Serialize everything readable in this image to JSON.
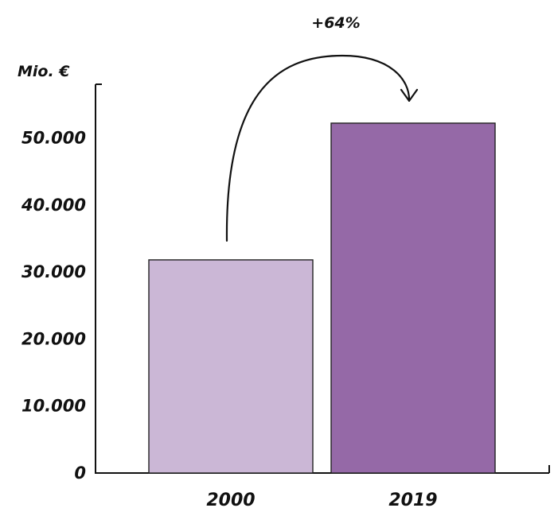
{
  "chart_data": {
    "type": "bar",
    "categories": [
      "2000",
      "2019"
    ],
    "values": [
      31800,
      52200
    ],
    "bar_colors": [
      "#cbb7d6",
      "#9569a7"
    ],
    "ylabel": "Mio. €",
    "ylim": [
      0,
      58000
    ],
    "yticks": [
      0,
      10000,
      20000,
      30000,
      40000,
      50000
    ],
    "ytick_labels": [
      "0",
      "10.000",
      "20.000",
      "30.000",
      "40.000",
      "50.000"
    ],
    "annotation": "+64%",
    "grid": false,
    "legend": "none"
  }
}
